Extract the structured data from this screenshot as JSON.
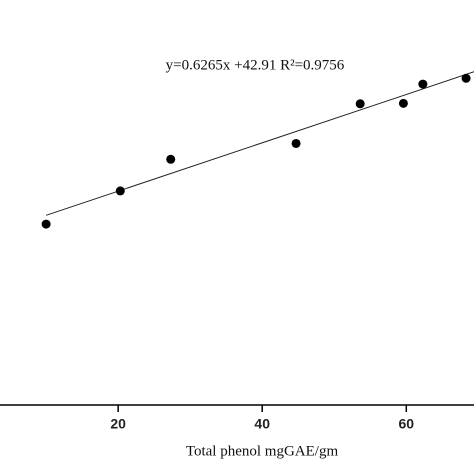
{
  "chart_data": {
    "type": "scatter",
    "x_label": "Total phenol mgGAE/gm",
    "annotation": "y=0.6265x +42.91 R²=0.9756",
    "x": [
      10.0,
      20.3,
      27.3,
      44.7,
      53.6,
      59.6,
      62.3,
      68.3
    ],
    "values": [
      46.9,
      55.5,
      63.7,
      67.8,
      78.1,
      78.2,
      83.2,
      84.7
    ],
    "color": "#000000",
    "fit": {
      "slope": 0.6265,
      "intercept": 42.91,
      "xrange": [
        10,
        69.4
      ]
    },
    "xlim": [
      3.6,
      69.4
    ],
    "xticks": [
      20,
      40,
      60
    ],
    "ylim": [
      0,
      105
    ]
  }
}
